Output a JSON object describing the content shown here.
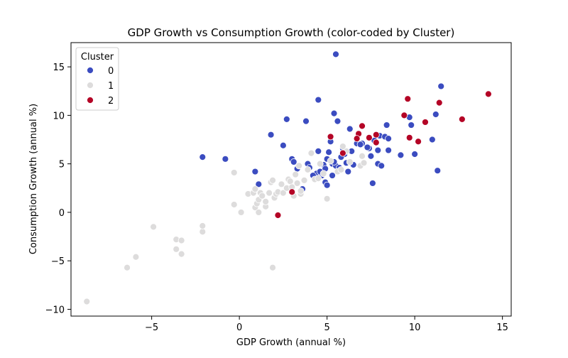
{
  "chart_data": {
    "type": "scatter",
    "title": "GDP Growth vs Consumption Growth (color-coded by Cluster)",
    "xlabel": "GDP Growth (annual %)",
    "ylabel": "Consumption Growth (annual %)",
    "xlim": [
      -9.6,
      15.5
    ],
    "ylim": [
      -10.7,
      17.5
    ],
    "xticks": [
      -5,
      0,
      5,
      10,
      15
    ],
    "yticks": [
      -10,
      -5,
      0,
      5,
      10,
      15
    ],
    "xtick_labels": [
      "−5",
      "0",
      "5",
      "10",
      "15"
    ],
    "ytick_labels": [
      "−10",
      "−5",
      "0",
      "5",
      "10",
      "15"
    ],
    "grid": false,
    "legend": {
      "title": "Cluster",
      "placement": "top-left"
    },
    "series": [
      {
        "name": "0",
        "color": "#3b4cc0",
        "points": [
          [
            5.5,
            16.3
          ],
          [
            4.5,
            11.6
          ],
          [
            11.5,
            13.0
          ],
          [
            2.7,
            9.6
          ],
          [
            3.8,
            9.4
          ],
          [
            5.4,
            10.2
          ],
          [
            5.6,
            9.4
          ],
          [
            1.8,
            8.0
          ],
          [
            2.5,
            6.9
          ],
          [
            -2.1,
            5.7
          ],
          [
            -0.8,
            5.5
          ],
          [
            0.9,
            4.2
          ],
          [
            1.1,
            2.9
          ],
          [
            3.0,
            5.5
          ],
          [
            3.1,
            5.2
          ],
          [
            3.3,
            4.5
          ],
          [
            3.6,
            2.4
          ],
          [
            3.9,
            5.0
          ],
          [
            4.0,
            4.6
          ],
          [
            4.5,
            6.3
          ],
          [
            4.4,
            4.0
          ],
          [
            4.7,
            3.8
          ],
          [
            4.8,
            4.9
          ],
          [
            4.9,
            3.1
          ],
          [
            5.0,
            2.8
          ],
          [
            5.1,
            6.2
          ],
          [
            5.2,
            7.3
          ],
          [
            5.3,
            5.0
          ],
          [
            5.3,
            3.8
          ],
          [
            5.5,
            4.8
          ],
          [
            5.7,
            4.6
          ],
          [
            5.9,
            6.6
          ],
          [
            6.0,
            6.0
          ],
          [
            6.1,
            5.1
          ],
          [
            6.2,
            4.2
          ],
          [
            6.3,
            8.6
          ],
          [
            6.4,
            6.3
          ],
          [
            6.5,
            4.9
          ],
          [
            6.7,
            7.1
          ],
          [
            7.0,
            7.1
          ],
          [
            7.4,
            6.6
          ],
          [
            7.5,
            5.8
          ],
          [
            7.6,
            3.0
          ],
          [
            7.7,
            7.4
          ],
          [
            7.9,
            6.4
          ],
          [
            7.9,
            5.0
          ],
          [
            8.0,
            7.9
          ],
          [
            8.1,
            4.8
          ],
          [
            8.3,
            7.8
          ],
          [
            8.4,
            9.0
          ],
          [
            8.5,
            7.6
          ],
          [
            8.5,
            6.4
          ],
          [
            9.2,
            5.9
          ],
          [
            9.7,
            9.8
          ],
          [
            9.8,
            9.0
          ],
          [
            10.0,
            6.0
          ],
          [
            11.2,
            10.1
          ],
          [
            11.0,
            7.5
          ],
          [
            11.3,
            4.3
          ],
          [
            5.0,
            5.5
          ],
          [
            4.9,
            4.5
          ],
          [
            4.6,
            4.2
          ],
          [
            5.4,
            5.2
          ],
          [
            6.9,
            7.0
          ],
          [
            7.3,
            6.7
          ],
          [
            5.8,
            5.7
          ],
          [
            4.2,
            3.8
          ]
        ]
      },
      {
        "name": "1",
        "color": "#dddcdc",
        "points": [
          [
            -8.7,
            -9.2
          ],
          [
            -6.4,
            -5.7
          ],
          [
            -5.9,
            -4.6
          ],
          [
            -4.9,
            -1.5
          ],
          [
            -3.6,
            -2.8
          ],
          [
            -3.6,
            -3.8
          ],
          [
            -3.3,
            -2.9
          ],
          [
            -3.3,
            -4.3
          ],
          [
            -2.1,
            -2.0
          ],
          [
            -2.1,
            -1.4
          ],
          [
            -0.3,
            4.1
          ],
          [
            -0.3,
            0.8
          ],
          [
            0.1,
            0.0
          ],
          [
            0.5,
            1.9
          ],
          [
            0.8,
            2.0
          ],
          [
            0.9,
            2.4
          ],
          [
            0.9,
            0.5
          ],
          [
            1.0,
            0.9
          ],
          [
            1.1,
            1.3
          ],
          [
            1.1,
            0.0
          ],
          [
            1.2,
            2.0
          ],
          [
            1.3,
            1.7
          ],
          [
            1.5,
            0.6
          ],
          [
            1.7,
            2.0
          ],
          [
            1.8,
            3.1
          ],
          [
            1.9,
            3.3
          ],
          [
            1.9,
            -5.7
          ],
          [
            2.0,
            1.5
          ],
          [
            2.1,
            1.9
          ],
          [
            2.2,
            2.1
          ],
          [
            2.5,
            2.0
          ],
          [
            2.7,
            2.5
          ],
          [
            2.8,
            3.4
          ],
          [
            2.9,
            3.2
          ],
          [
            3.0,
            2.6
          ],
          [
            3.1,
            1.7
          ],
          [
            3.2,
            3.9
          ],
          [
            3.4,
            4.8
          ],
          [
            3.5,
            1.9
          ],
          [
            3.5,
            2.2
          ],
          [
            3.7,
            3.3
          ],
          [
            4.1,
            6.1
          ],
          [
            4.3,
            3.4
          ],
          [
            4.6,
            5.0
          ],
          [
            4.8,
            4.0
          ],
          [
            5.0,
            1.4
          ],
          [
            5.2,
            5.3
          ],
          [
            5.6,
            4.2
          ],
          [
            5.8,
            4.4
          ],
          [
            6.1,
            6.3
          ],
          [
            6.9,
            4.8
          ],
          [
            7.0,
            5.8
          ],
          [
            7.1,
            5.1
          ],
          [
            3.9,
            4.4
          ],
          [
            4.5,
            3.5
          ],
          [
            2.4,
            2.9
          ],
          [
            1.5,
            1.1
          ],
          [
            5.9,
            6.8
          ],
          [
            6.3,
            5.2
          ],
          [
            3.3,
            3.0
          ]
        ]
      },
      {
        "name": "2",
        "color": "#b40426",
        "points": [
          [
            14.2,
            12.2
          ],
          [
            12.7,
            9.6
          ],
          [
            11.4,
            11.3
          ],
          [
            10.6,
            9.3
          ],
          [
            9.6,
            11.7
          ],
          [
            9.4,
            10.0
          ],
          [
            9.7,
            7.7
          ],
          [
            10.2,
            7.3
          ],
          [
            7.8,
            7.2
          ],
          [
            7.8,
            8.0
          ],
          [
            7.4,
            7.7
          ],
          [
            7.0,
            8.9
          ],
          [
            6.8,
            8.1
          ],
          [
            6.7,
            7.6
          ],
          [
            5.9,
            6.1
          ],
          [
            5.2,
            7.8
          ],
          [
            3.0,
            2.1
          ],
          [
            2.2,
            -0.3
          ]
        ]
      }
    ]
  }
}
